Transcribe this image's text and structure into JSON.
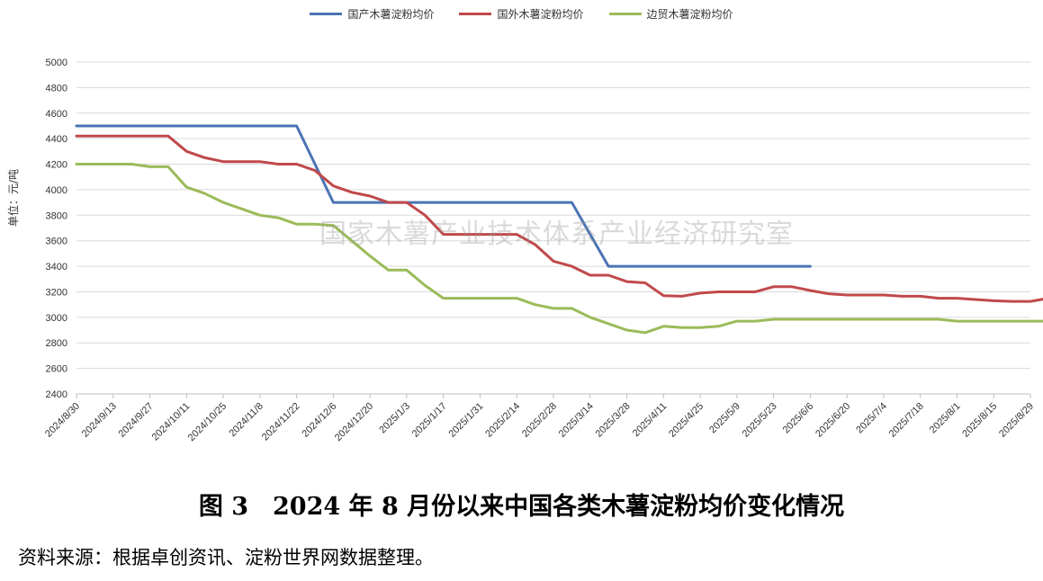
{
  "legend": {
    "items": [
      {
        "label": "国产木薯淀粉均价",
        "color": "#4a74b4"
      },
      {
        "label": "国外木薯淀粉均价",
        "color": "#c0494b"
      },
      {
        "label": "边贸木薯淀粉均价",
        "color": "#9bbb59"
      }
    ]
  },
  "watermark": "国家木薯产业技术体系产业经济研究室",
  "caption": "图 3　2024 年 8 月份以来中国各类木薯淀粉均价变化情况",
  "source": "资料来源：根据卓创资讯、淀粉世界网数据整理。",
  "chart_data": {
    "type": "line",
    "ylabel": "单位：元/吨",
    "xlabel": "",
    "ylim": [
      2400,
      5000
    ],
    "yticks": [
      2400,
      2600,
      2800,
      3000,
      3200,
      3400,
      3600,
      3800,
      4000,
      4200,
      4400,
      4600,
      4800,
      5000
    ],
    "grid": true,
    "legend_position": "top",
    "x_tick_labels": [
      "2024/8/30",
      "2024/9/13",
      "2024/9/27",
      "2024/10/11",
      "2024/10/25",
      "2024/11/8",
      "2024/11/22",
      "2024/12/6",
      "2024/12/20",
      "2025/1/3",
      "2025/1/17",
      "2025/1/31",
      "2025/2/14",
      "2025/2/28",
      "2025/3/14",
      "2025/3/28",
      "2025/4/11",
      "2025/4/25",
      "2025/5/9",
      "2025/5/23",
      "2025/6/6",
      "2025/6/20",
      "2025/7/4",
      "2025/7/18",
      "2025/8/1",
      "2025/8/15",
      "2025/8/29"
    ],
    "series": [
      {
        "name": "国产木薯淀粉均价",
        "color": "#4a74b4",
        "points": [
          [
            "2024/8/30",
            4500
          ],
          [
            "2024/11/22",
            4500
          ],
          [
            "2024/11/29",
            4200
          ],
          [
            "2024/12/6",
            3900
          ],
          [
            "2025/3/7",
            3900
          ],
          [
            "2025/3/14",
            3650
          ],
          [
            "2025/3/21",
            3400
          ],
          [
            "2025/6/6",
            3400
          ]
        ]
      },
      {
        "name": "国外木薯淀粉均价",
        "color": "#c0494b",
        "points": [
          [
            "2024/8/30",
            4420
          ],
          [
            "2024/9/6",
            4420
          ],
          [
            "2024/9/13",
            4420
          ],
          [
            "2024/9/20",
            4420
          ],
          [
            "2024/9/27",
            4420
          ],
          [
            "2024/10/4",
            4420
          ],
          [
            "2024/10/11",
            4300
          ],
          [
            "2024/10/18",
            4250
          ],
          [
            "2024/10/25",
            4220
          ],
          [
            "2024/11/1",
            4220
          ],
          [
            "2024/11/8",
            4220
          ],
          [
            "2024/11/15",
            4200
          ],
          [
            "2024/11/22",
            4200
          ],
          [
            "2024/11/29",
            4150
          ],
          [
            "2024/12/6",
            4030
          ],
          [
            "2024/12/13",
            3980
          ],
          [
            "2024/12/20",
            3950
          ],
          [
            "2024/12/27",
            3900
          ],
          [
            "2025/1/3",
            3900
          ],
          [
            "2025/1/10",
            3800
          ],
          [
            "2025/1/17",
            3650
          ],
          [
            "2025/1/24",
            3650
          ],
          [
            "2025/1/31",
            3650
          ],
          [
            "2025/2/7",
            3650
          ],
          [
            "2025/2/14",
            3650
          ],
          [
            "2025/2/21",
            3570
          ],
          [
            "2025/2/28",
            3440
          ],
          [
            "2025/3/7",
            3400
          ],
          [
            "2025/3/14",
            3330
          ],
          [
            "2025/3/21",
            3330
          ],
          [
            "2025/3/28",
            3280
          ],
          [
            "2025/4/4",
            3270
          ],
          [
            "2025/4/11",
            3170
          ],
          [
            "2025/4/18",
            3165
          ],
          [
            "2025/4/25",
            3190
          ],
          [
            "2025/5/2",
            3200
          ],
          [
            "2025/5/9",
            3200
          ],
          [
            "2025/5/16",
            3200
          ],
          [
            "2025/5/23",
            3240
          ],
          [
            "2025/5/30",
            3240
          ],
          [
            "2025/6/6",
            3210
          ],
          [
            "2025/6/13",
            3185
          ],
          [
            "2025/6/20",
            3175
          ],
          [
            "2025/6/27",
            3175
          ],
          [
            "2025/7/4",
            3175
          ],
          [
            "2025/7/11",
            3165
          ],
          [
            "2025/7/18",
            3165
          ],
          [
            "2025/7/25",
            3150
          ],
          [
            "2025/8/1",
            3150
          ],
          [
            "2025/8/8",
            3140
          ],
          [
            "2025/8/15",
            3130
          ],
          [
            "2025/8/22",
            3125
          ],
          [
            "2025/8/29",
            3125
          ],
          [
            "2025/9/5",
            3150
          ]
        ]
      },
      {
        "name": "边贸木薯淀粉均价",
        "color": "#9bbb59",
        "points": [
          [
            "2024/8/30",
            4200
          ],
          [
            "2024/9/6",
            4200
          ],
          [
            "2024/9/13",
            4200
          ],
          [
            "2024/9/20",
            4200
          ],
          [
            "2024/9/27",
            4180
          ],
          [
            "2024/10/4",
            4180
          ],
          [
            "2024/10/11",
            4020
          ],
          [
            "2024/10/18",
            3970
          ],
          [
            "2024/10/25",
            3900
          ],
          [
            "2024/11/1",
            3850
          ],
          [
            "2024/11/8",
            3800
          ],
          [
            "2024/11/15",
            3780
          ],
          [
            "2024/11/22",
            3730
          ],
          [
            "2024/11/29",
            3730
          ],
          [
            "2024/12/6",
            3720
          ],
          [
            "2024/12/13",
            3600
          ],
          [
            "2024/12/20",
            3480
          ],
          [
            "2024/12/27",
            3370
          ],
          [
            "2025/1/3",
            3370
          ],
          [
            "2025/1/10",
            3250
          ],
          [
            "2025/1/17",
            3150
          ],
          [
            "2025/1/24",
            3150
          ],
          [
            "2025/1/31",
            3150
          ],
          [
            "2025/2/7",
            3150
          ],
          [
            "2025/2/14",
            3150
          ],
          [
            "2025/2/21",
            3100
          ],
          [
            "2025/2/28",
            3070
          ],
          [
            "2025/3/7",
            3070
          ],
          [
            "2025/3/14",
            3000
          ],
          [
            "2025/3/21",
            2950
          ],
          [
            "2025/3/28",
            2900
          ],
          [
            "2025/4/4",
            2880
          ],
          [
            "2025/4/11",
            2930
          ],
          [
            "2025/4/18",
            2920
          ],
          [
            "2025/4/25",
            2920
          ],
          [
            "2025/5/2",
            2930
          ],
          [
            "2025/5/9",
            2970
          ],
          [
            "2025/5/16",
            2970
          ],
          [
            "2025/5/23",
            2985
          ],
          [
            "2025/5/30",
            2985
          ],
          [
            "2025/6/6",
            2985
          ],
          [
            "2025/6/13",
            2985
          ],
          [
            "2025/6/20",
            2985
          ],
          [
            "2025/6/27",
            2985
          ],
          [
            "2025/7/4",
            2985
          ],
          [
            "2025/7/11",
            2985
          ],
          [
            "2025/7/18",
            2985
          ],
          [
            "2025/7/25",
            2985
          ],
          [
            "2025/8/1",
            2970
          ],
          [
            "2025/8/8",
            2970
          ],
          [
            "2025/8/15",
            2970
          ],
          [
            "2025/8/22",
            2970
          ],
          [
            "2025/8/29",
            2970
          ],
          [
            "2025/9/5",
            2970
          ]
        ]
      }
    ]
  }
}
